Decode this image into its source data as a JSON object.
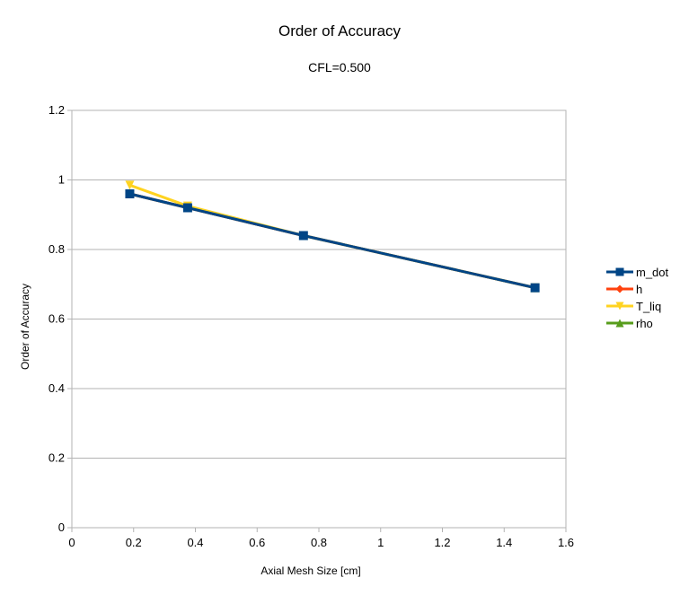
{
  "chart_data": {
    "type": "line",
    "title": "Order of Accuracy",
    "subtitle": "CFL=0.500",
    "xlabel": "Axial Mesh Size [cm]",
    "ylabel": "Order of Accuracy",
    "xlim": [
      0,
      1.6
    ],
    "ylim": [
      0,
      1.2
    ],
    "xticks": [
      "0",
      "0.2",
      "0.4",
      "0.6",
      "0.8",
      "1",
      "1.2",
      "1.4",
      "1.6"
    ],
    "yticks": [
      "0",
      "0.2",
      "0.4",
      "0.6",
      "0.8",
      "1",
      "1.2"
    ],
    "grid": "horizontal",
    "legend_position": "right",
    "series": [
      {
        "name": "rho",
        "color": "#579d1c",
        "marker": "triangle-up",
        "x": [
          0.1875,
          0.375,
          0.75,
          1.5
        ],
        "y": [
          0.96,
          0.92,
          0.84,
          0.69
        ]
      },
      {
        "name": "h",
        "color": "#ff420e",
        "marker": "diamond",
        "x": [
          0.1875,
          0.375,
          0.75,
          1.5
        ],
        "y": [
          0.96,
          0.92,
          0.84,
          0.69
        ]
      },
      {
        "name": "T_liq",
        "color": "#ffd320",
        "marker": "triangle-down",
        "x": [
          0.1875,
          0.375,
          0.75,
          1.5
        ],
        "y": [
          0.985,
          0.925,
          0.84,
          0.69
        ]
      },
      {
        "name": "m_dot",
        "color": "#004586",
        "marker": "square",
        "x": [
          0.1875,
          0.375,
          0.75,
          1.5
        ],
        "y": [
          0.96,
          0.92,
          0.84,
          0.69
        ]
      }
    ],
    "legend_order": [
      "m_dot",
      "h",
      "T_liq",
      "rho"
    ]
  }
}
